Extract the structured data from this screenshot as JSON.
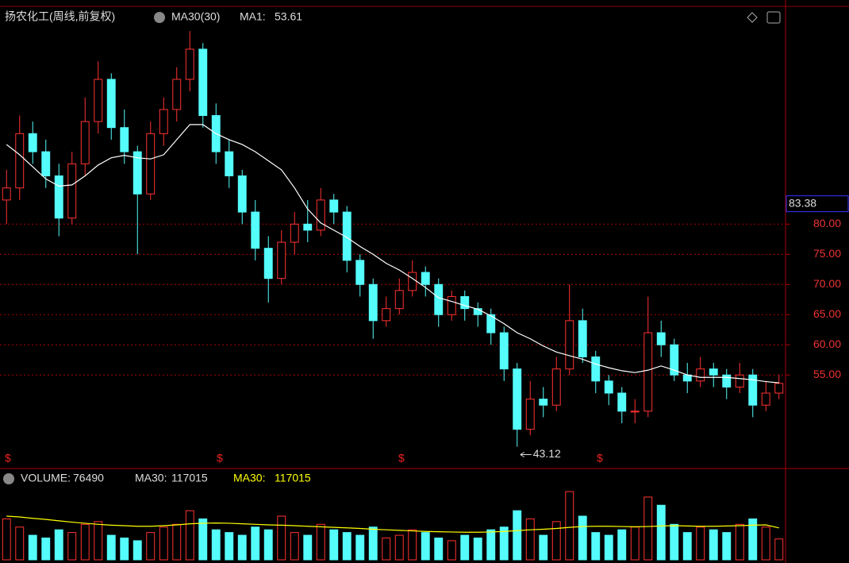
{
  "chart_data": [
    {
      "type": "candlestick",
      "title": "扬农化工(周线,前复权)",
      "indicator": "MA30(30)",
      "ma1_label": "MA1:",
      "open": [
        84,
        86,
        95,
        92,
        88,
        81,
        90,
        97,
        104,
        96,
        92,
        85,
        95,
        99,
        104,
        109,
        98,
        92,
        88,
        82,
        76,
        71,
        77,
        80,
        79,
        84,
        82,
        74,
        70,
        64,
        66,
        69,
        72,
        70,
        65,
        68,
        66,
        65,
        62,
        56,
        46,
        51,
        50,
        56,
        64,
        58,
        54,
        52,
        49,
        49,
        62,
        60,
        55,
        54,
        56,
        55,
        53,
        55,
        50,
        52
      ],
      "high": [
        89,
        98,
        97,
        94,
        90,
        92,
        101,
        107,
        105,
        99,
        93,
        97,
        101,
        106,
        112,
        110,
        100,
        94,
        89,
        84,
        78,
        79,
        82,
        84,
        86,
        85,
        83,
        75,
        71,
        68,
        71,
        74,
        73,
        71,
        69,
        69,
        67,
        66,
        63,
        57,
        54,
        53,
        58,
        70,
        66,
        59,
        55,
        53,
        51,
        68,
        64,
        61,
        57,
        58,
        57,
        56,
        57,
        56,
        54,
        55
      ],
      "low": [
        80,
        84,
        90,
        86,
        78,
        80,
        88,
        95,
        94,
        90,
        75,
        84,
        93,
        97,
        102,
        96,
        90,
        86,
        80,
        74,
        67,
        70,
        75,
        77,
        78,
        80,
        72,
        68,
        61,
        63,
        65,
        68,
        68,
        63,
        64,
        64,
        63,
        60,
        54,
        43.12,
        45,
        48,
        49,
        55,
        57,
        52,
        50,
        47,
        47,
        48,
        58,
        54,
        52,
        53,
        53,
        51,
        52,
        48,
        49,
        51
      ],
      "close": [
        86,
        95,
        92,
        88,
        81,
        90,
        97,
        104,
        96,
        92,
        85,
        95,
        99,
        104,
        109,
        98,
        92,
        88,
        82,
        76,
        71,
        77,
        80,
        79,
        84,
        82,
        74,
        70,
        64,
        66,
        69,
        72,
        70,
        65,
        68,
        66,
        65,
        62,
        56,
        46,
        51,
        50,
        56,
        64,
        58,
        54,
        52,
        49,
        49,
        62,
        60,
        55,
        54,
        56,
        55,
        53,
        55,
        50,
        52,
        53.61
      ],
      "ma": {
        "name": "MA30",
        "color": "#ffffff",
        "values": [
          93.2,
          91.5,
          89.5,
          87.5,
          86.3,
          86.5,
          88,
          89.8,
          91,
          91.4,
          91,
          90.8,
          91.5,
          94,
          96.5,
          96.5,
          95,
          94,
          93.2,
          92,
          90.5,
          89,
          86,
          82.5,
          80.2,
          79,
          77.8,
          76.3,
          75,
          73.5,
          72.4,
          71,
          69.5,
          67.8,
          67.2,
          66.5,
          65.9,
          64.8,
          63.5,
          62,
          61,
          59.8,
          58.8,
          58.2,
          57.6,
          56.8,
          56.2,
          55.7,
          55.4,
          55.8,
          56.5,
          55.8,
          55,
          54.6,
          54.6,
          54.6,
          54.4,
          54.2,
          53.9,
          53.7
        ]
      },
      "up_color": "#ff3232",
      "down_color": "#54fcfc",
      "ylim": [
        39.5,
        113.2
      ],
      "yticks": [
        {
          "value": 80,
          "label": "80.00"
        },
        {
          "value": 75,
          "label": "75.00"
        },
        {
          "value": 70,
          "label": "70.00"
        },
        {
          "value": 65,
          "label": "65.00"
        },
        {
          "value": 60,
          "label": "60.00"
        },
        {
          "value": 55,
          "label": "55.00"
        }
      ],
      "cursor_price": 83.38,
      "grid": true
    },
    {
      "type": "bar",
      "title": "VOLUME:",
      "ma_label": "MA30:",
      "values": [
        150000,
        120000,
        90000,
        80000,
        110000,
        100000,
        130000,
        140000,
        90000,
        80000,
        70000,
        100000,
        120000,
        130000,
        180000,
        150000,
        110000,
        100000,
        90000,
        120000,
        110000,
        160000,
        100000,
        90000,
        130000,
        110000,
        100000,
        90000,
        120000,
        80000,
        90000,
        110000,
        100000,
        80000,
        70000,
        90000,
        80000,
        110000,
        120000,
        180000,
        150000,
        90000,
        140000,
        250000,
        160000,
        100000,
        90000,
        110000,
        120000,
        230000,
        200000,
        130000,
        100000,
        120000,
        110000,
        100000,
        130000,
        150000,
        120000,
        76490
      ],
      "ma": {
        "name": "MA30:",
        "color": "#ffff00",
        "values": [
          160000,
          157000,
          152000,
          148000,
          143000,
          138000,
          134000,
          130000,
          127000,
          125000,
          123000,
          123000,
          125000,
          128000,
          132000,
          134000,
          135000,
          134000,
          132000,
          130000,
          128000,
          127000,
          125000,
          123000,
          121000,
          119000,
          117000,
          115000,
          112000,
          110000,
          108000,
          106000,
          104000,
          103000,
          102000,
          101000,
          101000,
          102000,
          104000,
          107000,
          110000,
          112000,
          115000,
          119000,
          122000,
          123000,
          123000,
          122000,
          121000,
          122000,
          124000,
          125000,
          124000,
          123000,
          123000,
          124000,
          125000,
          127000,
          128000,
          117015
        ]
      },
      "ylim": [
        0,
        320000
      ]
    }
  ]
}
